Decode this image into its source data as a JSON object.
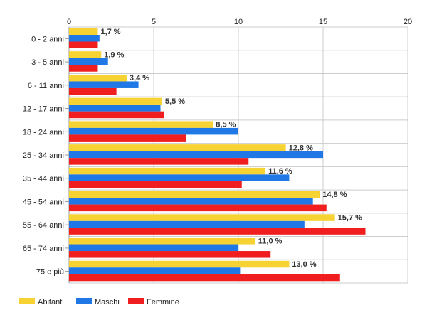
{
  "chart_data": {
    "type": "bar",
    "orientation": "horizontal",
    "title": "",
    "xlabel": "",
    "ylabel": "",
    "xlim": [
      0,
      20
    ],
    "x_ticks": [
      "0",
      "5",
      "10",
      "15",
      "20"
    ],
    "x_tick_values": [
      0,
      5,
      10,
      15,
      20
    ],
    "grid": true,
    "legend_position": "bottom-left",
    "categories": [
      "0 - 2 anni",
      "3 - 5 anni",
      "6 - 11 anni",
      "12 - 17 anni",
      "18 - 24 anni",
      "25 - 34 anni",
      "35 - 44 anni",
      "45 - 54 anni",
      "55 - 64 anni",
      "65 - 74 anni",
      "75 e più"
    ],
    "series": [
      {
        "name": "Abitanti",
        "color": "#f6d232",
        "values": [
          1.7,
          1.9,
          3.4,
          5.5,
          8.5,
          12.8,
          11.6,
          14.8,
          15.7,
          11.0,
          13.0
        ]
      },
      {
        "name": "Maschi",
        "color": "#1f78e6",
        "values": [
          1.8,
          2.3,
          4.1,
          5.4,
          10.0,
          15.0,
          13.0,
          14.4,
          13.9,
          10.0,
          10.1
        ]
      },
      {
        "name": "Femmine",
        "color": "#f01e1e",
        "values": [
          1.7,
          1.7,
          2.8,
          5.6,
          6.9,
          10.6,
          10.2,
          15.2,
          17.5,
          11.9,
          16.0
        ]
      }
    ],
    "data_labels": [
      "1,7 %",
      "1,9 %",
      "3,4 %",
      "5,5 %",
      "8,5 %",
      "12,8 %",
      "11,6 %",
      "14,8 %",
      "15,7 %",
      "11,0 %",
      "13,0 %"
    ]
  }
}
